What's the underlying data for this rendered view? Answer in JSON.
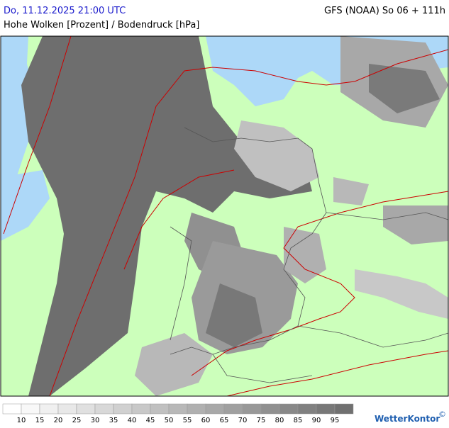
{
  "header": {
    "datetime": "Do, 11.12.2025 21:00 UTC",
    "model": "GFS (NOAA) So 06 + 111h",
    "subtitle": "Hohe Wolken [Prozent] / Bodendruck [hPa]"
  },
  "legend": {
    "labels": [
      "10",
      "15",
      "20",
      "25",
      "30",
      "35",
      "40",
      "45",
      "50",
      "55",
      "60",
      "65",
      "70",
      "75",
      "80",
      "85",
      "90",
      "95"
    ],
    "colors": [
      "#ffffff",
      "#f8f8f8",
      "#f0f0f0",
      "#e8e8e8",
      "#e0e0e0",
      "#d8d8d8",
      "#d0d0d0",
      "#c8c8c8",
      "#c0c0c0",
      "#b8b8b8",
      "#b0b0b0",
      "#a8a8a8",
      "#a0a0a0",
      "#989898",
      "#909090",
      "#888888",
      "#808080",
      "#787878",
      "#707070"
    ]
  },
  "logo": {
    "name": "WetterKontor",
    "copyright": "©"
  }
}
